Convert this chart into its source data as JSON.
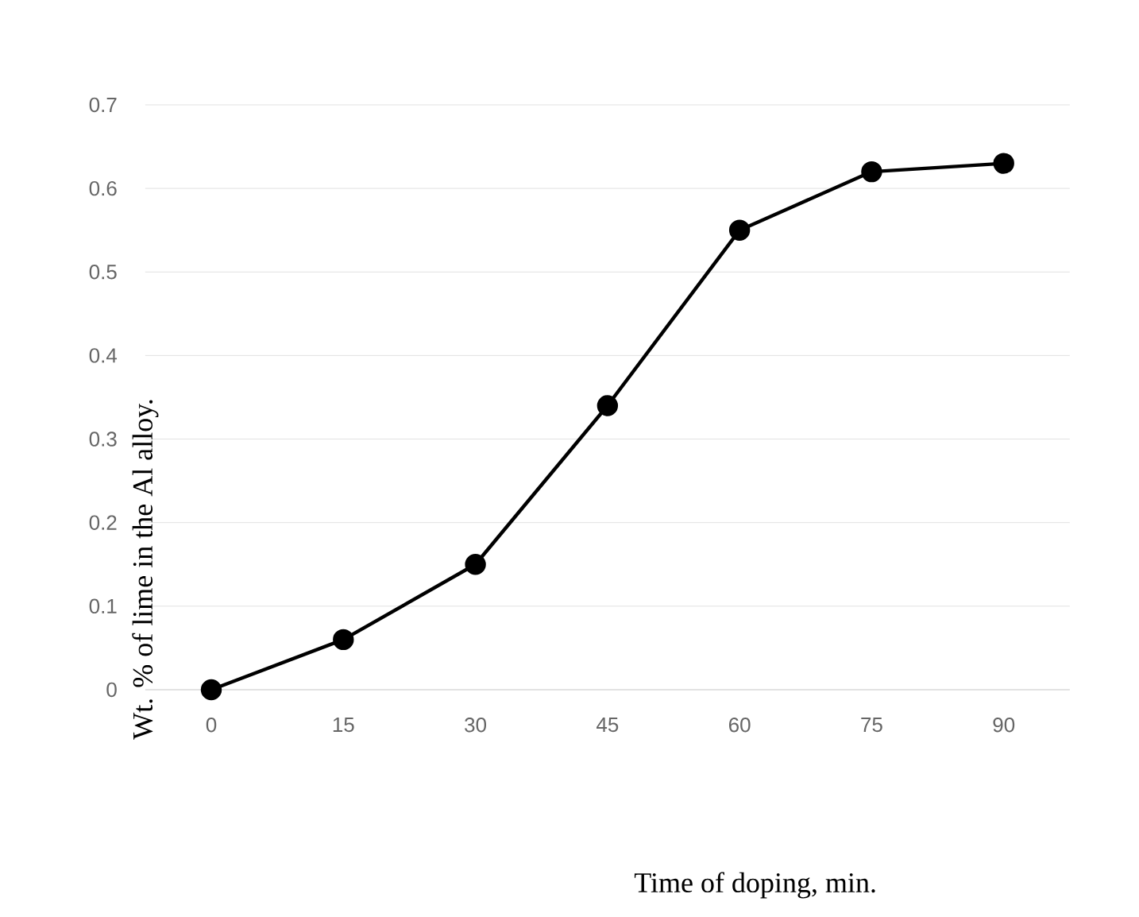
{
  "chart_data": {
    "type": "line",
    "xlabel": "Time  of doping, min.",
    "ylabel": "Wt. % of lime  in the Al alloy.",
    "categories": [
      "0",
      "15",
      "30",
      "45",
      "60",
      "75",
      "90"
    ],
    "series": [
      {
        "color": "#000000",
        "values": [
          0,
          0.06,
          0.15,
          0.34,
          0.55,
          0.62,
          0.63
        ]
      }
    ],
    "ylim": [
      0,
      0.7
    ],
    "yticks": [
      0,
      0.1,
      0.2,
      0.3,
      0.4,
      0.5,
      0.6,
      0.7
    ],
    "grid": "y",
    "marker": "circle",
    "line_style": "solid"
  }
}
